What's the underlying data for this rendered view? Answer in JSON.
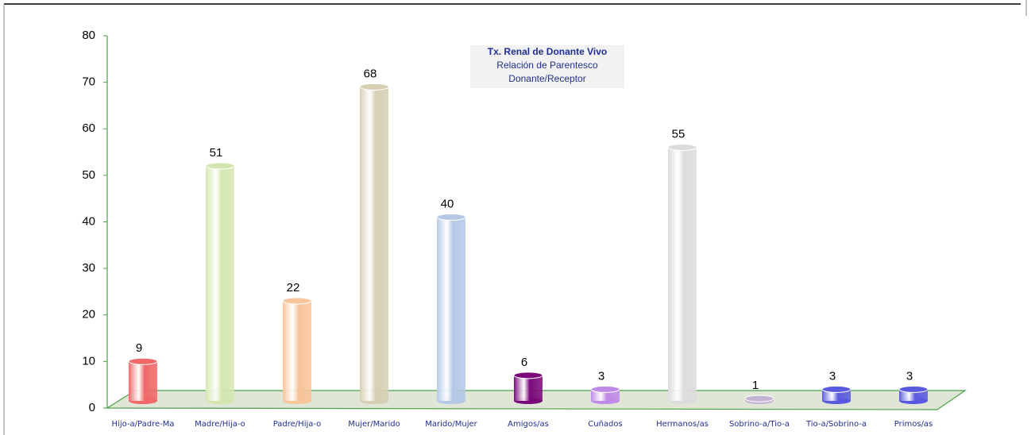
{
  "chart_data": {
    "type": "bar",
    "title": "Tx. Renal de Donante Vivo",
    "subtitle": [
      "Relación de Parentesco",
      "Donante/Receptor"
    ],
    "categories": [
      "Hijo-a/Padre-Ma",
      "Madre/Hija-o",
      "Padre/Hija-o",
      "Mujer/Marido",
      "Marido/Mujer",
      "Amigos/as",
      "Cuñados",
      "Hermanos/as",
      "Sobrino-a/Tio-a",
      "Tio-a/Sobrino-a",
      "Primos/as"
    ],
    "values": [
      9,
      51,
      22,
      68,
      40,
      6,
      3,
      55,
      1,
      3,
      3
    ],
    "colors": [
      "#f06868",
      "#d4e6b0",
      "#f8c49a",
      "#d6cfb4",
      "#b4c8e6",
      "#7a0a7a",
      "#c08ae8",
      "#dcdcdc",
      "#c4b4d4",
      "#5a5ae0",
      "#5a5ae0"
    ],
    "ylim": [
      0,
      80
    ],
    "yticks": [
      0,
      10,
      20,
      30,
      40,
      50,
      60,
      70,
      80
    ]
  }
}
